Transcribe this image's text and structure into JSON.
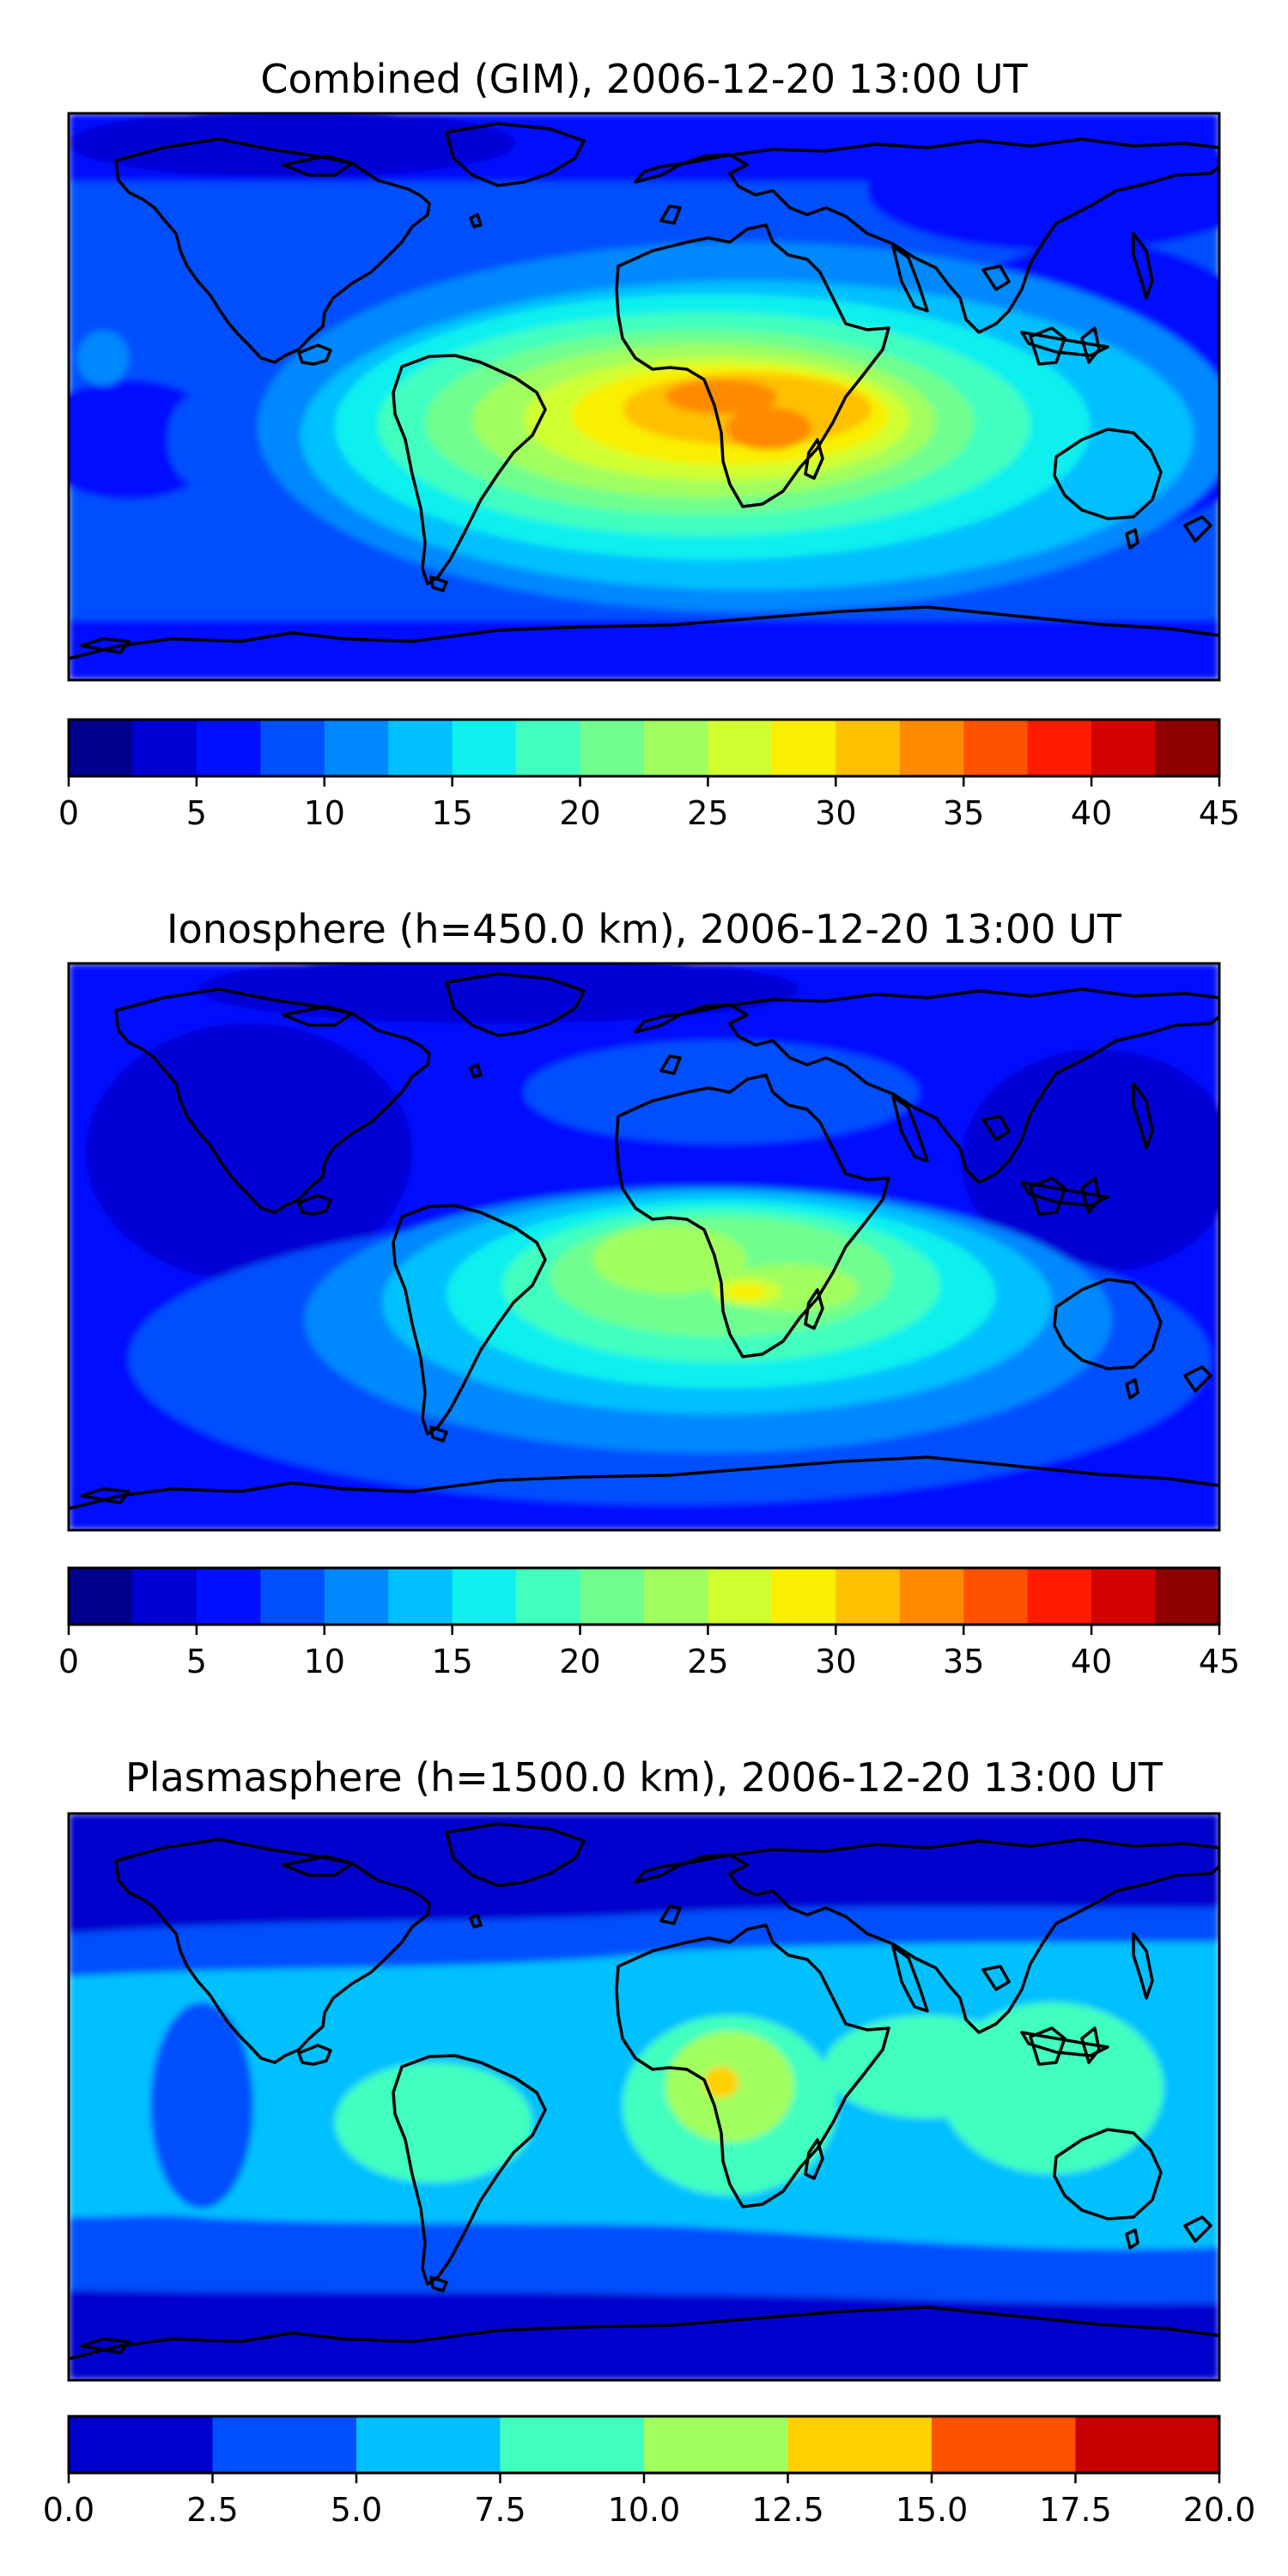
{
  "colormaps": {
    "jet15": [
      "#00008f",
      "#0000d4",
      "#0010ff",
      "#0050ff",
      "#0088ff",
      "#00c0ff",
      "#10f0ee",
      "#40ffbf",
      "#70ff8f",
      "#a0ff5f",
      "#d0ff30",
      "#f8f000",
      "#ffc000",
      "#ff8a00",
      "#ff5200",
      "#ff1a00",
      "#d40000",
      "#8f0000"
    ],
    "jet8": [
      "#0000cd",
      "#0050ff",
      "#00c0ff",
      "#40ffbf",
      "#a0ff5f",
      "#ffd000",
      "#ff5200",
      "#c80000"
    ]
  },
  "panels": [
    {
      "title": "Combined (GIM), 2006-12-20 13:00 UT",
      "colorbar": {
        "min": 0,
        "max": 45,
        "levels": 18,
        "tick_labels": [
          "0",
          "5",
          "10",
          "15",
          "20",
          "25",
          "30",
          "35",
          "40",
          "45"
        ]
      }
    },
    {
      "title": "Ionosphere  (h=450.0 km), 2006-12-20 13:00 UT",
      "colorbar": {
        "min": 0,
        "max": 45,
        "levels": 18,
        "tick_labels": [
          "0",
          "5",
          "10",
          "15",
          "20",
          "25",
          "30",
          "35",
          "40",
          "45"
        ]
      }
    },
    {
      "title": "Plasmasphere (h=1500.0 km), 2006-12-20 13:00 UT",
      "colorbar": {
        "min": 0,
        "max": 20,
        "levels": 8,
        "tick_labels": [
          "0.0",
          "2.5",
          "5.0",
          "7.5",
          "10.0",
          "12.5",
          "15.0",
          "17.5",
          "20.0"
        ]
      }
    }
  ]
}
